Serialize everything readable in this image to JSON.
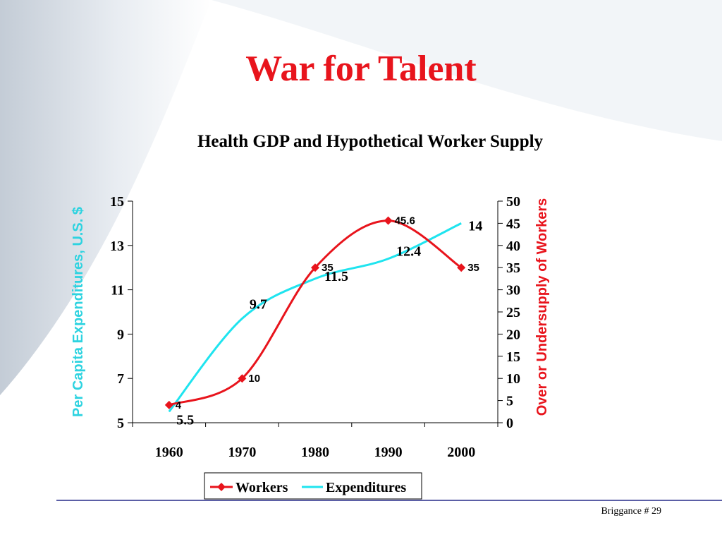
{
  "slide": {
    "title": "War for Talent",
    "footer": "Briggance # 29"
  },
  "colors": {
    "title": "#e8141c",
    "workers": "#e8141c",
    "expenditures": "#1fe4ef",
    "left_axis_title": "#2ed3e0",
    "right_axis_title": "#e8141c",
    "footer_line": "#5b5fa6"
  },
  "chart_data": {
    "type": "line",
    "title": "Health GDP and Hypothetical Worker Supply",
    "x": [
      "1960",
      "1970",
      "1980",
      "1990",
      "2000"
    ],
    "ylabel_left": "Per Capita Expenditures, U.S. $",
    "ylabel_right": "Over or Undersupply of Workers",
    "ylim_left": [
      5,
      15
    ],
    "ylim_right": [
      0,
      50
    ],
    "yticks_left": [
      "5",
      "7",
      "9",
      "11",
      "13",
      "15"
    ],
    "yticks_right": [
      "0",
      "5",
      "10",
      "15",
      "20",
      "25",
      "30",
      "35",
      "40",
      "45",
      "50"
    ],
    "legend_position": "bottom",
    "series": [
      {
        "name": "Workers",
        "axis": "right",
        "marker": "diamond",
        "values": [
          4,
          10,
          35,
          45.6,
          35
        ],
        "labels": [
          "4",
          "10",
          "35",
          "45.6",
          "35"
        ]
      },
      {
        "name": "Expenditures",
        "axis": "left",
        "marker": "none",
        "values": [
          5.5,
          9.7,
          11.5,
          12.4,
          14
        ],
        "labels": [
          "5.5",
          "9.7",
          "11.5",
          "12.4",
          "14"
        ]
      }
    ]
  }
}
